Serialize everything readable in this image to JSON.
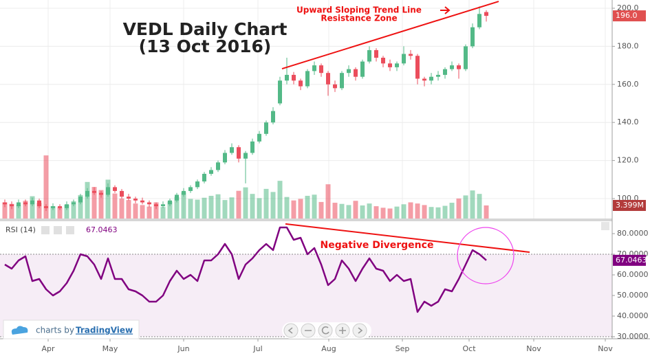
{
  "chart_data": [
    {
      "type": "candlestick",
      "title": "VEDL Daily Chart",
      "subtitle": "(13 Oct 2016)",
      "open": [
        98,
        97,
        96,
        98,
        97,
        99,
        96,
        95,
        96,
        95,
        97,
        98,
        101,
        104,
        103,
        102,
        106,
        104,
        101,
        100,
        99,
        98,
        97,
        96,
        97,
        99,
        102,
        104,
        106,
        109,
        113,
        115,
        119,
        124,
        127,
        121,
        124,
        130,
        134,
        140,
        150,
        162,
        165,
        162,
        159,
        167,
        170,
        166,
        160,
        158,
        166,
        168,
        164,
        172,
        178,
        174,
        171,
        169,
        171,
        176,
        175,
        163,
        162,
        164,
        165,
        168,
        170,
        168,
        180,
        190,
        198
      ],
      "high": [
        99.5,
        98.5,
        99.5,
        99.5,
        100.5,
        100,
        97,
        97.5,
        97,
        98.5,
        99.5,
        102.5,
        105.5,
        106,
        104,
        108,
        107,
        105,
        102.5,
        101,
        100.5,
        99,
        98,
        98.5,
        100,
        103,
        105.5,
        107,
        110,
        114,
        116.5,
        120,
        125.5,
        129,
        128,
        125,
        131.5,
        135.5,
        141,
        148,
        164,
        174,
        166.5,
        163,
        168,
        172,
        171,
        167,
        162,
        167,
        170,
        169,
        173,
        180,
        179,
        175,
        173,
        172,
        180,
        178,
        176,
        164,
        166,
        167,
        169,
        172,
        171,
        181,
        192,
        201,
        199
      ],
      "low": [
        95.5,
        94.5,
        95,
        96,
        96,
        95,
        93.5,
        94,
        94,
        94,
        96,
        97,
        100,
        102,
        100.5,
        101,
        103,
        100,
        99,
        97.5,
        97,
        95.5,
        94.5,
        95,
        96,
        98,
        101,
        103,
        105,
        108,
        112,
        114,
        118,
        123,
        119,
        108,
        123,
        129,
        133,
        139,
        149,
        160,
        160,
        157,
        158,
        165,
        164,
        154,
        156,
        157,
        164,
        162,
        163,
        171,
        172,
        169,
        167,
        167,
        170,
        173,
        160,
        159,
        160,
        162,
        163,
        167,
        163,
        167,
        179,
        189,
        193
      ],
      "close": [
        97,
        96,
        98,
        97,
        99,
        96,
        95,
        96,
        95,
        97,
        98,
        101,
        104,
        103,
        102,
        106,
        104,
        101,
        100,
        99,
        98,
        97,
        96,
        97,
        99,
        102,
        104,
        106,
        109,
        113,
        115,
        119,
        124,
        127,
        121,
        124,
        130,
        134,
        140,
        146,
        162,
        165,
        162,
        159,
        167,
        170,
        166,
        160,
        158,
        166,
        168,
        164,
        172,
        178,
        174,
        171,
        169,
        171,
        176,
        175,
        163,
        162,
        164,
        165,
        168,
        170,
        168,
        180,
        190,
        197,
        196
      ],
      "volume": [
        4.2,
        3.8,
        3.5,
        4.6,
        5.8,
        4.1,
        16.4,
        3.2,
        2.9,
        3.6,
        4.5,
        6.1,
        9.5,
        8.2,
        7.4,
        10.1,
        6.5,
        5.2,
        4.8,
        3.9,
        3.5,
        3.1,
        4.2,
        3.0,
        4.4,
        5.6,
        6.8,
        5.1,
        4.9,
        5.4,
        5.9,
        6.3,
        4.8,
        5.5,
        7.2,
        8.1,
        6.4,
        5.3,
        7.7,
        6.9,
        9.8,
        5.6,
        4.7,
        5.1,
        5.9,
        6.2,
        4.3,
        8.9,
        4.1,
        3.8,
        3.5,
        4.6,
        3.4,
        3.9,
        3.2,
        2.8,
        2.6,
        3.1,
        3.7,
        4.2,
        3.9,
        3.5,
        3.0,
        2.9,
        3.3,
        4.1,
        5.2,
        6.0,
        7.3,
        6.4,
        3.399
      ],
      "last_labels": {
        "close": "196.0",
        "volume": "3.399M"
      },
      "up_color": "#53b987",
      "down_color": "#eb4d5c",
      "ylim": [
        89.53,
        204.33
      ],
      "yticks": [
        {
          "value": 100,
          "label": "100.0"
        },
        {
          "value": 120,
          "label": "120.0"
        },
        {
          "value": 140,
          "label": "140.0"
        },
        {
          "value": 160,
          "label": "160.0"
        },
        {
          "value": 180,
          "label": "180.0"
        },
        {
          "value": 200,
          "label": "200.0"
        }
      ],
      "volume_ylim": [
        0,
        56.8
      ],
      "xlim": [
        -0.5,
        88.3
      ],
      "xticks": [
        {
          "value": 6.3,
          "label": "Apr"
        },
        {
          "value": 15.3,
          "label": "May"
        },
        {
          "value": 26,
          "label": "Jun"
        },
        {
          "value": 36.8,
          "label": "Jul"
        },
        {
          "value": 47.1,
          "label": "Aug"
        },
        {
          "value": 57.8,
          "label": "Sep"
        },
        {
          "value": 67.5,
          "label": "Oct"
        },
        {
          "value": 76.9,
          "label": "Nov"
        },
        {
          "value": 87.3,
          "label": "Nov"
        }
      ],
      "grid": true,
      "trend_line": {
        "label": "Upward Sloping Trend Line",
        "label2": "Resistance Zone",
        "color": "#ee1111",
        "x": [
          40.3,
          71.8
        ],
        "y": [
          168.2,
          203.6
        ]
      }
    },
    {
      "type": "line",
      "series": [
        {
          "name": "RSI (14)",
          "color": "#800080",
          "values": [
            65,
            63,
            67,
            69,
            57,
            58,
            53,
            50,
            52,
            56,
            62,
            70,
            69,
            65,
            58,
            68,
            58,
            58,
            53,
            52,
            50,
            47,
            47,
            50,
            57,
            62,
            58,
            60,
            57,
            67,
            67,
            70,
            75,
            70,
            58,
            65,
            68,
            72,
            75,
            72,
            83,
            83,
            77,
            78,
            70,
            73,
            65,
            55,
            58,
            67,
            63,
            57,
            63,
            68,
            63,
            62,
            57,
            60,
            57,
            58,
            42,
            47,
            45,
            47,
            53,
            52,
            58,
            65,
            72,
            70,
            67.0463
          ]
        }
      ],
      "band": [
        30,
        70
      ],
      "ylim": [
        29.33,
        86
      ],
      "yticks": [
        {
          "value": 30,
          "label": "30.0000"
        },
        {
          "value": 40,
          "label": "40.0000"
        },
        {
          "value": 50,
          "label": "50.0000"
        },
        {
          "value": 60,
          "label": "60.0000"
        },
        {
          "value": 70,
          "label": "70.0000"
        },
        {
          "value": 80,
          "label": "80.0000"
        }
      ],
      "divergence_line": {
        "label": "Negative Divergence",
        "color": "#ee1111",
        "x": [
          40.8,
          76.3
        ],
        "y": [
          84.7,
          71
        ]
      }
    }
  ],
  "watermark": {
    "prefix": "charts by",
    "brand": "TradingView"
  }
}
